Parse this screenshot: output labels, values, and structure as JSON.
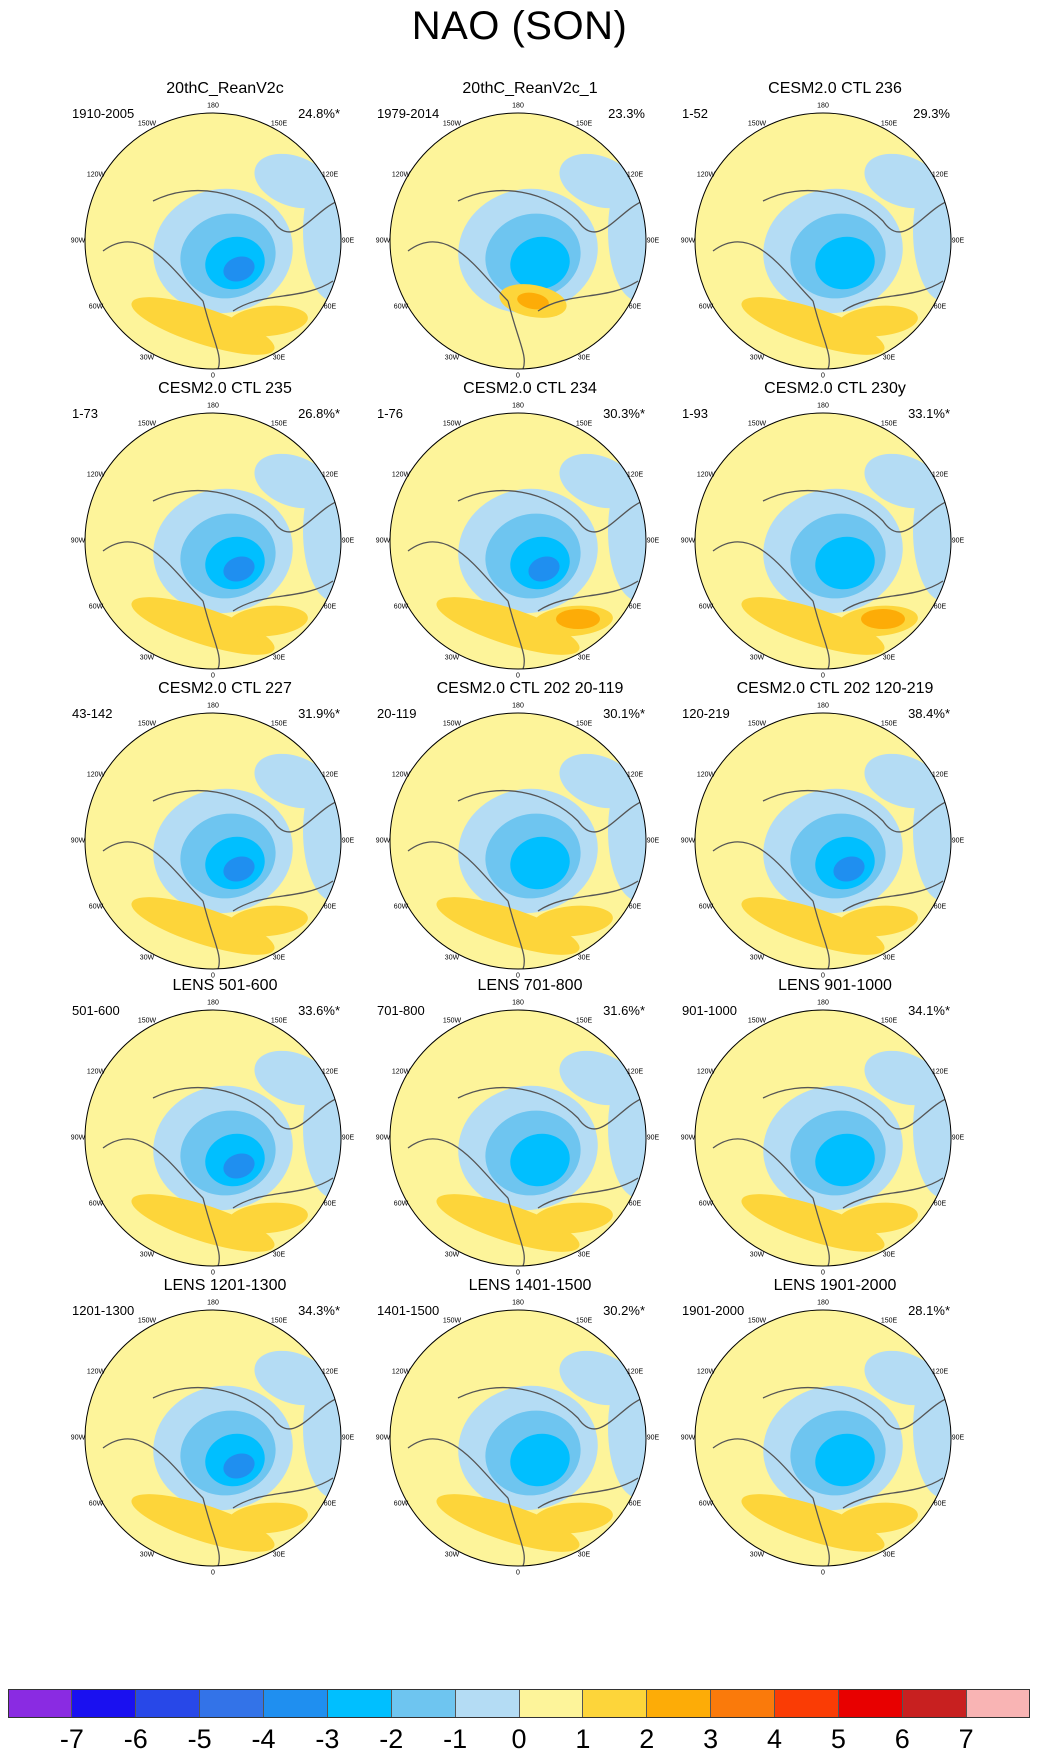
{
  "title": "NAO (SON)",
  "lon_labels": [
    "180",
    "150E",
    "120E",
    "90E",
    "60E",
    "30E",
    "0",
    "30W",
    "60W",
    "90W",
    "120W",
    "150W"
  ],
  "panels": [
    {
      "title": "20thC_ReanV2c",
      "period": "1910-2005",
      "pct": "24.8%*"
    },
    {
      "title": "20thC_ReanV2c_1",
      "period": "1979-2014",
      "pct": "23.3%"
    },
    {
      "title": "CESM2.0 CTL 236",
      "period": "1-52",
      "pct": "29.3%"
    },
    {
      "title": "CESM2.0 CTL 235",
      "period": "1-73",
      "pct": "26.8%*"
    },
    {
      "title": "CESM2.0 CTL 234",
      "period": "1-76",
      "pct": "30.3%*"
    },
    {
      "title": "CESM2.0 CTL 230y",
      "period": "1-93",
      "pct": "33.1%*"
    },
    {
      "title": "CESM2.0 CTL 227",
      "period": "43-142",
      "pct": "31.9%*"
    },
    {
      "title": "CESM2.0 CTL 202 20-119",
      "period": "20-119",
      "pct": "30.1%*"
    },
    {
      "title": "CESM2.0 CTL 202 120-219",
      "period": "120-219",
      "pct": "38.4%*"
    },
    {
      "title": "LENS 501-600",
      "period": "501-600",
      "pct": "33.6%*"
    },
    {
      "title": "LENS 701-800",
      "period": "701-800",
      "pct": "31.6%*"
    },
    {
      "title": "LENS 901-1000",
      "period": "901-1000",
      "pct": "34.1%*"
    },
    {
      "title": "LENS 1201-1300",
      "period": "1201-1300",
      "pct": "34.3%*"
    },
    {
      "title": "LENS 1401-1500",
      "period": "1401-1500",
      "pct": "30.2%*"
    },
    {
      "title": "LENS 1901-2000",
      "period": "1901-2000",
      "pct": "28.1%*"
    }
  ],
  "colorbar": {
    "labels": [
      "-7",
      "-6",
      "-5",
      "-4",
      "-3",
      "-2",
      "-1",
      "0",
      "1",
      "2",
      "3",
      "4",
      "5",
      "6",
      "7"
    ],
    "colors": [
      "#8a2be2",
      "#1a10f0",
      "#2848e8",
      "#3373e8",
      "#1f8ff0",
      "#00bfff",
      "#6ec5f0",
      "#b4dcf4",
      "#fdf49a",
      "#fdd53a",
      "#fdac07",
      "#fa7a0b",
      "#fa3c05",
      "#e80000",
      "#c82020",
      "#f9b4b4"
    ]
  },
  "chart_data": {
    "type": "heatmap",
    "title": "NAO (SON)",
    "projection": "north polar stereographic",
    "colorbar_levels": [
      -7,
      -6,
      -5,
      -4,
      -3,
      -2,
      -1,
      0,
      1,
      2,
      3,
      4,
      5,
      6,
      7
    ]
  }
}
